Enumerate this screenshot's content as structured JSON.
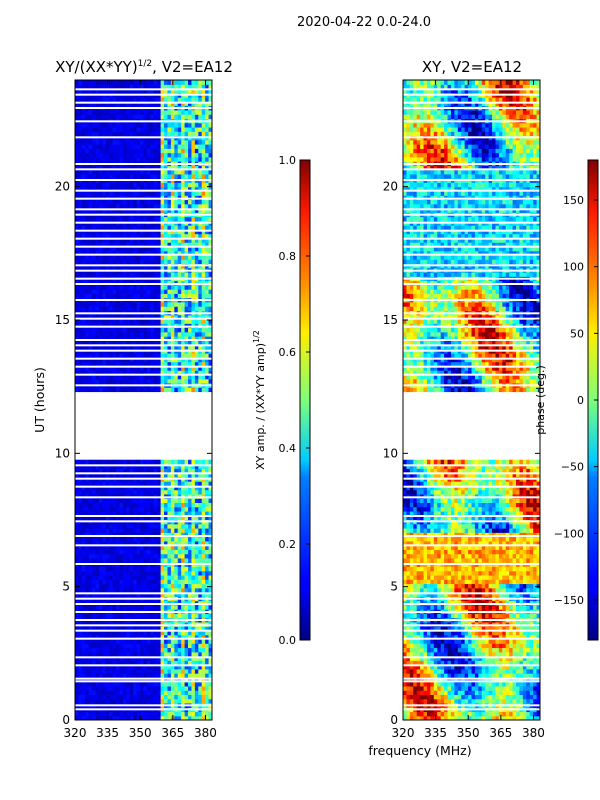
{
  "chart_data": {
    "suptitle": "2020-04-22 0.0-24.0",
    "xlabel": "frequency (MHz)",
    "x_ticks": [
      320,
      335,
      350,
      365,
      380
    ],
    "y_ticks": [
      0,
      5,
      10,
      15,
      20
    ],
    "panels": [
      {
        "type": "heatmap",
        "title": "XY/(XX*YY)",
        "title_sup": "1/2",
        "title_suffix": ", V2=EA12",
        "ylabel": "UT (hours)",
        "xlim": [
          320,
          383
        ],
        "ylim": [
          0,
          24
        ],
        "colormap": "jet",
        "colorbar": {
          "label": "XY amp. / (XX*YY amp)",
          "label_sup": "1/2",
          "range": [
            0.0,
            1.0
          ],
          "ticks": [
            0.0,
            0.2,
            0.4,
            0.6,
            0.8,
            1.0
          ],
          "tick_labels": [
            "0.0",
            "0.2",
            "0.4",
            "0.6",
            "0.8",
            "1.0"
          ]
        },
        "no_data_ut_range": [
          9.8,
          12.3
        ],
        "bright_band_mhz": [
          360,
          383
        ]
      },
      {
        "type": "heatmap",
        "title": "XY, V2=EA12",
        "ylabel": "",
        "xlim": [
          320,
          383
        ],
        "ylim": [
          0,
          24
        ],
        "colormap": "jet",
        "colorbar": {
          "label": "phase (deg.)",
          "range": [
            -180,
            180
          ],
          "ticks": [
            -150,
            -100,
            -50,
            0,
            50,
            100,
            150
          ],
          "tick_labels": [
            "−150",
            "−100",
            "−50",
            "0",
            "50",
            "100",
            "150"
          ]
        },
        "no_data_ut_range": [
          9.8,
          12.3
        ]
      }
    ],
    "flagged_ut_hours": [
      0.4,
      0.55,
      1.45,
      1.55,
      2.05,
      2.35,
      3.05,
      3.35,
      3.55,
      3.75,
      4.05,
      4.35,
      4.55,
      4.75,
      5.85,
      6.55,
      6.9,
      7.45,
      7.65,
      8.35,
      8.75,
      9.05,
      9.25,
      9.55,
      12.55,
      12.95,
      13.25,
      13.55,
      13.85,
      14.05,
      14.25,
      14.75,
      15.05,
      15.25,
      15.75,
      16.35,
      16.55,
      16.85,
      17.05,
      17.45,
      17.75,
      18.05,
      18.35,
      18.65,
      18.95,
      19.15,
      19.55,
      19.85,
      20.25,
      20.65,
      20.85,
      21.85,
      22.45,
      22.95,
      23.15,
      23.45,
      23.65
    ]
  }
}
